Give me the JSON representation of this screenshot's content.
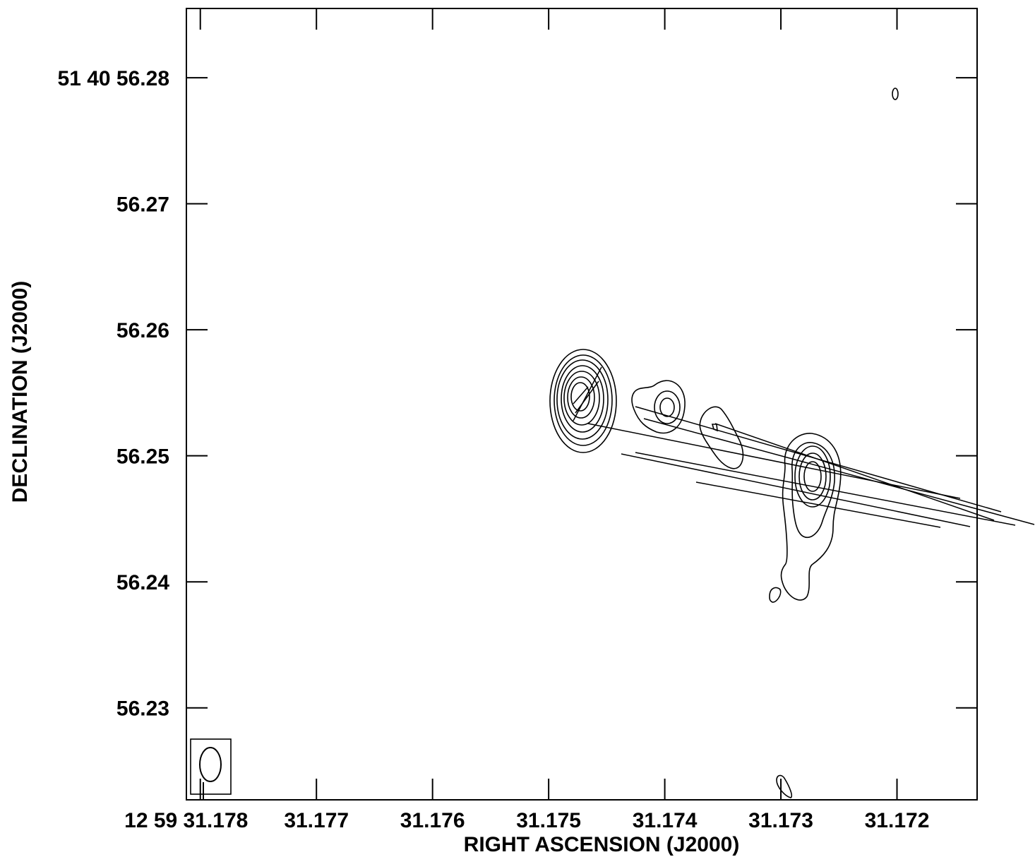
{
  "chart_data": {
    "type": "contour",
    "xlabel": "RIGHT ASCENSION (J2000)",
    "ylabel": "DECLINATION (J2000)",
    "x_ticks": [
      "12 59 31.178",
      "31.177",
      "31.176",
      "31.175",
      "31.174",
      "31.173",
      "31.172"
    ],
    "x_tick_values": [
      31.178,
      31.177,
      31.176,
      31.175,
      31.174,
      31.173,
      31.172
    ],
    "y_ticks": [
      "51 40 56.28",
      "56.27",
      "56.26",
      "56.25",
      "56.24",
      "56.23"
    ],
    "y_tick_values": [
      56.28,
      56.27,
      56.26,
      56.25,
      56.24,
      56.23
    ],
    "x_range": [
      31.17812,
      31.17131
    ],
    "y_range": [
      56.2227,
      56.2855
    ],
    "x_direction": "decreasing-right",
    "beam": {
      "position": "bottom-left",
      "shape": "ellipse"
    },
    "components": [
      {
        "name": "",
        "ra": 31.17463,
        "dec": 56.2555,
        "contour_levels": 8
      },
      {
        "name": "",
        "ra": 31.17405,
        "dec": 56.2543,
        "contour_levels": 3
      },
      {
        "name": "",
        "ra": 31.1734,
        "dec": 56.2528,
        "contour_levels": 2
      },
      {
        "name": "",
        "ra": 31.1725,
        "dec": 56.2486,
        "contour_levels": 5
      },
      {
        "name": "",
        "ra": 31.172,
        "dec": 56.2804,
        "contour_levels": 1
      },
      {
        "name": "",
        "ra": 31.173,
        "dec": 56.2237,
        "contour_levels": 1
      }
    ],
    "grid": false,
    "legend": "none"
  }
}
